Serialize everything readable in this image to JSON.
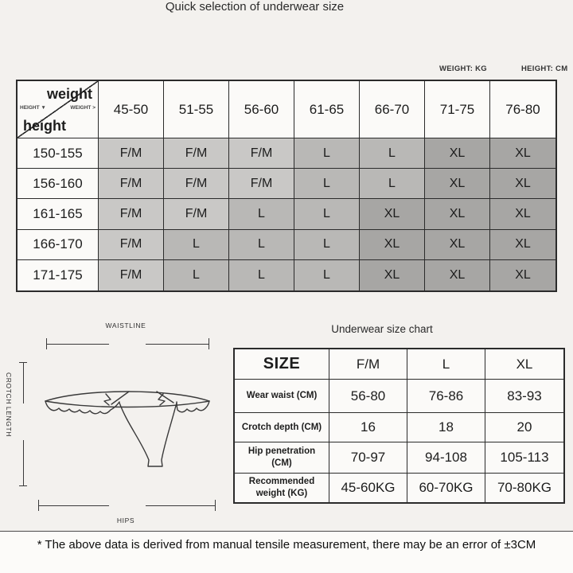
{
  "page": {
    "background": "#f3f1ee",
    "footer_note": "* The above data is derived from manual tensile measurement, there may be an error of ±3CM"
  },
  "quick_table": {
    "title": "Quick selection of underwear size",
    "weight_unit": "WEIGHT: KG",
    "height_unit": "HEIGHT: CM",
    "corner": {
      "weight_label": "weight",
      "height_label": "height",
      "height_hint": "HEIGHT ▼",
      "weight_hint": "WEIGHT >"
    },
    "weight_columns": [
      "45-50",
      "51-55",
      "56-60",
      "61-65",
      "66-70",
      "71-75",
      "76-80"
    ],
    "height_rows": [
      "150-155",
      "156-160",
      "161-165",
      "166-170",
      "171-175"
    ],
    "cells": [
      [
        "F/M",
        "F/M",
        "F/M",
        "L",
        "L",
        "XL",
        "XL"
      ],
      [
        "F/M",
        "F/M",
        "F/M",
        "L",
        "L",
        "XL",
        "XL"
      ],
      [
        "F/M",
        "F/M",
        "L",
        "L",
        "XL",
        "XL",
        "XL"
      ],
      [
        "F/M",
        "L",
        "L",
        "L",
        "XL",
        "XL",
        "XL"
      ],
      [
        "F/M",
        "L",
        "L",
        "L",
        "XL",
        "XL",
        "XL"
      ]
    ],
    "size_colors": {
      "F/M": "#c9c8c6",
      "L": "#b9b8b6",
      "XL": "#a7a6a4"
    }
  },
  "measurement_diagram": {
    "waistline_label": "WAISTLINE",
    "crotch_length_label": "CROTCH LENGTH",
    "hips_label": "HIPS"
  },
  "size_chart": {
    "title": "Underwear size chart",
    "columns": [
      "SIZE",
      "F/M",
      "L",
      "XL"
    ],
    "rows": [
      {
        "label": "Wear waist (CM)",
        "values": [
          "56-80",
          "76-86",
          "83-93"
        ]
      },
      {
        "label": "Crotch depth (CM)",
        "values": [
          "16",
          "18",
          "20"
        ]
      },
      {
        "label": "Hip penetration (CM)",
        "values": [
          "70-97",
          "94-108",
          "105-113"
        ]
      },
      {
        "label": "Recommended weight (KG)",
        "values": [
          "45-60KG",
          "60-70KG",
          "70-80KG"
        ]
      }
    ]
  }
}
